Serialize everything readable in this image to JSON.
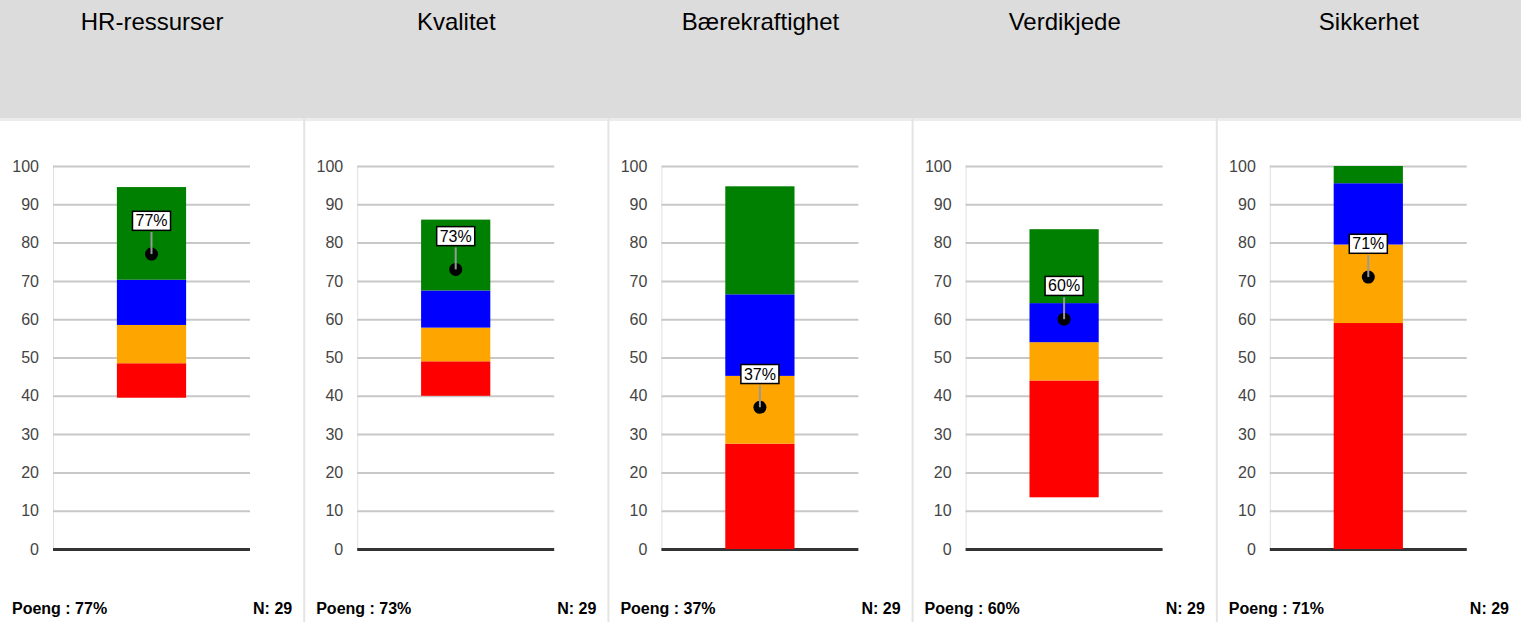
{
  "chart_data": [
    {
      "type": "bar",
      "title": "HR-ressurser",
      "stacked": true,
      "categories": [
        null
      ],
      "start": 39.5,
      "series": [
        {
          "color": "#ff0000",
          "values": [
            9
          ]
        },
        {
          "color": "#ffa500",
          "values": [
            10
          ]
        },
        {
          "color": "#0000ff",
          "values": [
            11.8
          ]
        },
        {
          "color": "#008000",
          "values": [
            24.2
          ]
        },
        {
          "type": "scatter",
          "color": "#000000",
          "marker": "circle",
          "data_labels": true,
          "values": [
            77
          ],
          "value_labels": [
            "77%"
          ]
        }
      ],
      "ylim": [
        0,
        100
      ],
      "yticks": [
        0,
        10,
        20,
        30,
        40,
        50,
        60,
        70,
        80,
        90,
        100
      ],
      "grid": true,
      "tick_labels": "y",
      "annotations": [
        "Poeng : 77%",
        "N: 29"
      ]
    },
    {
      "type": "bar",
      "title": "Kvalitet",
      "stacked": true,
      "categories": [
        null
      ],
      "start": 40,
      "series": [
        {
          "color": "#ff0000",
          "values": [
            9
          ]
        },
        {
          "color": "#ffa500",
          "values": [
            8.8
          ]
        },
        {
          "color": "#0000ff",
          "values": [
            9.7
          ]
        },
        {
          "color": "#008000",
          "values": [
            18.5
          ]
        },
        {
          "type": "scatter",
          "color": "#000000",
          "marker": "circle",
          "data_labels": true,
          "values": [
            73
          ],
          "value_labels": [
            "73%"
          ]
        }
      ],
      "ylim": [
        0,
        100
      ],
      "yticks": [
        0,
        10,
        20,
        30,
        40,
        50,
        60,
        70,
        80,
        90,
        100
      ],
      "grid": true,
      "tick_labels": "y",
      "annotations": [
        "Poeng : 73%",
        "N: 29"
      ]
    },
    {
      "type": "bar",
      "title": "Bærekraftighet",
      "stacked": true,
      "categories": [
        null
      ],
      "start": 0,
      "series": [
        {
          "color": "#ff0000",
          "values": [
            27.5
          ]
        },
        {
          "color": "#ffa500",
          "values": [
            17.7
          ]
        },
        {
          "color": "#0000ff",
          "values": [
            21.3
          ]
        },
        {
          "color": "#008000",
          "values": [
            28.2
          ]
        },
        {
          "type": "scatter",
          "color": "#000000",
          "marker": "circle",
          "data_labels": true,
          "values": [
            37
          ],
          "value_labels": [
            "37%"
          ]
        }
      ],
      "ylim": [
        0,
        100
      ],
      "yticks": [
        0,
        10,
        20,
        30,
        40,
        50,
        60,
        70,
        80,
        90,
        100
      ],
      "grid": true,
      "tick_labels": "y",
      "annotations": [
        "Poeng : 37%",
        "N: 29"
      ]
    },
    {
      "type": "bar",
      "title": "Verdikjede",
      "stacked": true,
      "categories": [
        null
      ],
      "start": 13.5,
      "series": [
        {
          "color": "#ff0000",
          "values": [
            30.5
          ]
        },
        {
          "color": "#ffa500",
          "values": [
            10
          ]
        },
        {
          "color": "#0000ff",
          "values": [
            10.2
          ]
        },
        {
          "color": "#008000",
          "values": [
            19.3
          ]
        },
        {
          "type": "scatter",
          "color": "#000000",
          "marker": "circle",
          "data_labels": true,
          "values": [
            60
          ],
          "value_labels": [
            "60%"
          ]
        }
      ],
      "ylim": [
        0,
        100
      ],
      "yticks": [
        0,
        10,
        20,
        30,
        40,
        50,
        60,
        70,
        80,
        90,
        100
      ],
      "grid": true,
      "tick_labels": "y",
      "annotations": [
        "Poeng : 60%",
        "N: 29"
      ]
    },
    {
      "type": "bar",
      "title": "Sikkerhet",
      "stacked": true,
      "categories": [
        null
      ],
      "start": 0,
      "series": [
        {
          "color": "#ff0000",
          "values": [
            59
          ]
        },
        {
          "color": "#ffa500",
          "values": [
            20.5
          ]
        },
        {
          "color": "#0000ff",
          "values": [
            16
          ]
        },
        {
          "color": "#008000",
          "values": [
            4.5
          ]
        },
        {
          "type": "scatter",
          "color": "#000000",
          "marker": "circle",
          "data_labels": true,
          "values": [
            71
          ],
          "value_labels": [
            "71%"
          ]
        }
      ],
      "ylim": [
        0,
        100
      ],
      "yticks": [
        0,
        10,
        20,
        30,
        40,
        50,
        60,
        70,
        80,
        90,
        100
      ],
      "grid": true,
      "tick_labels": "y",
      "annotations": [
        "Poeng : 71%",
        "N: 29"
      ]
    }
  ]
}
